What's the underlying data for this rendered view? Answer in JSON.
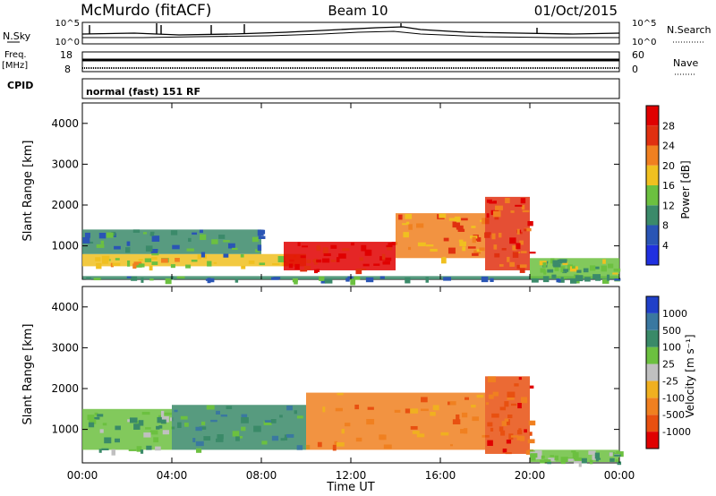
{
  "header": {
    "station": "McMurdo (fitACF)",
    "beam": "Beam 10",
    "date": "01/Oct/2015"
  },
  "summary_panels": {
    "noise": {
      "left_label": "N.Sky",
      "right_label": "N.Search",
      "left_ticks": [
        "10^5",
        "10^0"
      ],
      "right_ticks": [
        "10^5",
        "10^0"
      ]
    },
    "freq": {
      "left_label": "Freq.",
      "left_unit": "[MHz]",
      "left_ticks": [
        "18",
        "8"
      ],
      "right_label": "Nave",
      "right_ticks": [
        "60",
        "0"
      ]
    },
    "cpid": {
      "label": "CPID",
      "text": "normal (fast) 151 RF"
    }
  },
  "chart_data": [
    {
      "type": "heatmap",
      "name": "power",
      "ylabel": "Slant Range [km]",
      "y_ticks": [
        "1000",
        "2000",
        "3000",
        "4000"
      ],
      "ylim": [
        180,
        4500
      ],
      "colorbar": {
        "label": "Power [dB]",
        "ticks": [
          "4",
          "8",
          "12",
          "16",
          "20",
          "24",
          "28"
        ],
        "colors": [
          "#2030e0",
          "#2a55b5",
          "#3b8a6a",
          "#6cc040",
          "#f0c020",
          "#f08020",
          "#e03010",
          "#e00000"
        ]
      },
      "bands": [
        {
          "t": [
            0,
            24
          ],
          "r": [
            180,
            260
          ],
          "level": 2
        },
        {
          "t": [
            0,
            10
          ],
          "r": [
            500,
            800
          ],
          "level": 4
        },
        {
          "t": [
            0,
            8
          ],
          "r": [
            800,
            1400
          ],
          "level": 2
        },
        {
          "t": [
            9,
            14
          ],
          "r": [
            400,
            1100
          ],
          "level": 7
        },
        {
          "t": [
            14,
            18
          ],
          "r": [
            700,
            1800
          ],
          "level": 5
        },
        {
          "t": [
            18,
            20
          ],
          "r": [
            400,
            2200
          ],
          "level": 6
        },
        {
          "t": [
            20,
            24
          ],
          "r": [
            200,
            700
          ],
          "level": 3
        }
      ]
    },
    {
      "type": "heatmap",
      "name": "velocity",
      "ylabel": "Slant Range [km]",
      "y_ticks": [
        "1000",
        "2000",
        "3000",
        "4000"
      ],
      "ylim": [
        180,
        4500
      ],
      "xlabel": "Time UT",
      "x_ticks": [
        "00:00",
        "04:00",
        "08:00",
        "12:00",
        "16:00",
        "20:00",
        "00:00"
      ],
      "xlim": [
        0,
        24
      ],
      "colorbar": {
        "label": "Velocity [m s⁻¹]",
        "ticks": [
          "1000",
          "500",
          "100",
          "25",
          "-25",
          "-100",
          "-500",
          "-1000"
        ],
        "colors": [
          "#2040c8",
          "#3a78a0",
          "#3a8a68",
          "#6cc040",
          "#c0c0c0",
          "#f0b020",
          "#f08020",
          "#e85010",
          "#e00000"
        ]
      },
      "bands": [
        {
          "t": [
            0,
            4
          ],
          "r": [
            500,
            1500
          ],
          "level": 3
        },
        {
          "t": [
            4,
            10
          ],
          "r": [
            500,
            1600
          ],
          "level": 2
        },
        {
          "t": [
            10,
            18
          ],
          "r": [
            500,
            1900
          ],
          "level": 6
        },
        {
          "t": [
            18,
            20
          ],
          "r": [
            400,
            2300
          ],
          "level": 7
        },
        {
          "t": [
            20,
            24
          ],
          "r": [
            200,
            500
          ],
          "level": 3
        }
      ]
    }
  ]
}
